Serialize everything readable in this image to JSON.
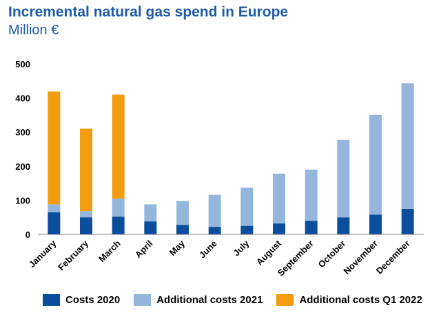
{
  "title": "Incremental natural gas spend in Europe",
  "subtitle": "Million €",
  "chart_data": {
    "type": "bar",
    "stacked": true,
    "title": "Incremental natural gas spend in Europe",
    "ylabel": "Million €",
    "xlabel": "",
    "ylim": [
      0,
      500
    ],
    "yticks": [
      0,
      100,
      200,
      300,
      400,
      500
    ],
    "grid": false,
    "legend_position": "bottom",
    "categories": [
      "January",
      "February",
      "March",
      "April",
      "May",
      "June",
      "July",
      "August",
      "September",
      "October",
      "November",
      "December"
    ],
    "series": [
      {
        "name": "Costs 2020",
        "color": "#0b4f9c",
        "values": [
          65,
          50,
          52,
          38,
          28,
          22,
          25,
          32,
          40,
          50,
          58,
          75
        ]
      },
      {
        "name": "Additional costs 2021",
        "color": "#94b6dc",
        "values": [
          23,
          18,
          53,
          50,
          70,
          94,
          112,
          146,
          150,
          227,
          293,
          368
        ]
      },
      {
        "name": "Additional costs Q1 2022",
        "color": "#f39c0f",
        "values": [
          331,
          242,
          305,
          0,
          0,
          0,
          0,
          0,
          0,
          0,
          0,
          0
        ]
      }
    ]
  }
}
